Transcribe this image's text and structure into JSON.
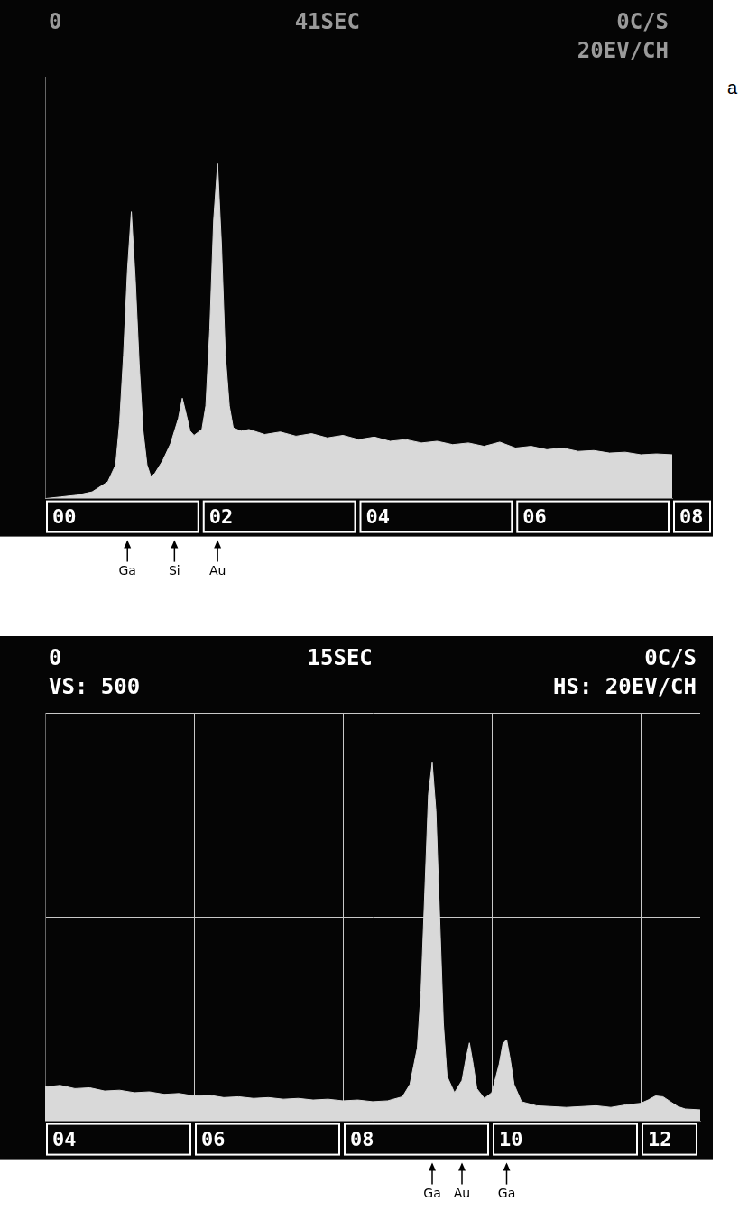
{
  "chart_data": [
    {
      "type": "area",
      "panel_label": "a",
      "header": [
        [
          "0",
          "41SEC",
          "0C/S"
        ],
        [
          "20EV/CH"
        ]
      ],
      "x": [
        0,
        0.2,
        0.4,
        0.6,
        0.8,
        0.9,
        0.95,
        1.0,
        1.05,
        1.1,
        1.15,
        1.2,
        1.25,
        1.3,
        1.35,
        1.4,
        1.5,
        1.6,
        1.7,
        1.75,
        1.8,
        1.85,
        1.9,
        2.0,
        2.05,
        2.1,
        2.15,
        2.2,
        2.25,
        2.3,
        2.35,
        2.4,
        2.5,
        2.6,
        2.8,
        3.0,
        3.2,
        3.4,
        3.6,
        3.8,
        4.0,
        4.2,
        4.4,
        4.6,
        4.8,
        5.0,
        5.2,
        5.4,
        5.6,
        5.8,
        6.0,
        6.2,
        6.4,
        6.6,
        6.8,
        7.0,
        7.2,
        7.4,
        7.6,
        7.8,
        8.0
      ],
      "values": [
        0,
        2,
        4,
        8,
        20,
        40,
        90,
        170,
        270,
        340,
        260,
        160,
        80,
        40,
        26,
        30,
        45,
        65,
        95,
        119,
        100,
        80,
        75,
        82,
        110,
        200,
        330,
        397,
        300,
        170,
        110,
        84,
        80,
        82,
        76,
        79,
        74,
        77,
        72,
        75,
        70,
        73,
        68,
        70,
        66,
        68,
        64,
        66,
        62,
        67,
        60,
        62,
        58,
        60,
        56,
        57,
        54,
        55,
        52,
        53,
        52
      ],
      "color": "#d9d9d9",
      "xlim": [
        0,
        8
      ],
      "xticks": [
        {
          "value": 0,
          "label": "00"
        },
        {
          "value": 2,
          "label": "02"
        },
        {
          "value": 4,
          "label": "04"
        },
        {
          "value": 6,
          "label": "06"
        },
        {
          "value": 8,
          "label": "08"
        }
      ],
      "ylim": [
        0,
        500
      ],
      "yticks": [
        0,
        250,
        500
      ],
      "grid": false,
      "tick_labels": "x",
      "annotations": [
        {
          "text": "Ga",
          "x": 1.05
        },
        {
          "text": "Si",
          "x": 1.65
        },
        {
          "text": "Au",
          "x": 2.2
        }
      ]
    },
    {
      "type": "area",
      "header": [
        [
          "0",
          "15SEC",
          "0C/S"
        ],
        [
          "VS: 500",
          "HS: 20EV/CH"
        ]
      ],
      "x": [
        4.0,
        4.2,
        4.4,
        4.6,
        4.8,
        5.0,
        5.2,
        5.4,
        5.6,
        5.8,
        6.0,
        6.2,
        6.4,
        6.6,
        6.8,
        7.0,
        7.2,
        7.4,
        7.6,
        7.8,
        8.0,
        8.2,
        8.4,
        8.6,
        8.8,
        8.9,
        9.0,
        9.05,
        9.1,
        9.15,
        9.2,
        9.25,
        9.3,
        9.35,
        9.4,
        9.5,
        9.6,
        9.65,
        9.7,
        9.75,
        9.8,
        9.9,
        10.0,
        10.1,
        10.15,
        10.2,
        10.25,
        10.3,
        10.4,
        10.6,
        10.8,
        11.0,
        11.2,
        11.4,
        11.6,
        11.8,
        12.0,
        12.1,
        12.2,
        12.3,
        12.4,
        12.5,
        12.6,
        12.8
      ],
      "values": [
        42,
        44,
        40,
        41,
        37,
        38,
        35,
        36,
        33,
        34,
        31,
        32,
        29,
        30,
        28,
        29,
        27,
        28,
        26,
        27,
        25,
        26,
        24,
        25,
        30,
        45,
        90,
        160,
        280,
        400,
        439,
        380,
        250,
        120,
        55,
        35,
        50,
        75,
        96,
        70,
        40,
        28,
        35,
        70,
        95,
        100,
        75,
        45,
        24,
        19,
        18,
        17,
        18,
        19,
        17,
        20,
        22,
        26,
        31,
        30,
        24,
        18,
        15,
        14
      ],
      "color": "#d9d9d9",
      "xlim": [
        4,
        12.8
      ],
      "xticks": [
        {
          "value": 4,
          "label": "04"
        },
        {
          "value": 6,
          "label": "06"
        },
        {
          "value": 8,
          "label": "08"
        },
        10,
        12
      ],
      "ylim": [
        0,
        500
      ],
      "yticks": [
        0,
        250,
        500
      ],
      "grid": true,
      "tick_labels": "x",
      "annotations": [
        {
          "text": "Ga",
          "x": 9.2
        },
        {
          "text": "Au",
          "x": 9.6
        },
        {
          "text": "Ga",
          "x": 10.2
        }
      ]
    }
  ]
}
